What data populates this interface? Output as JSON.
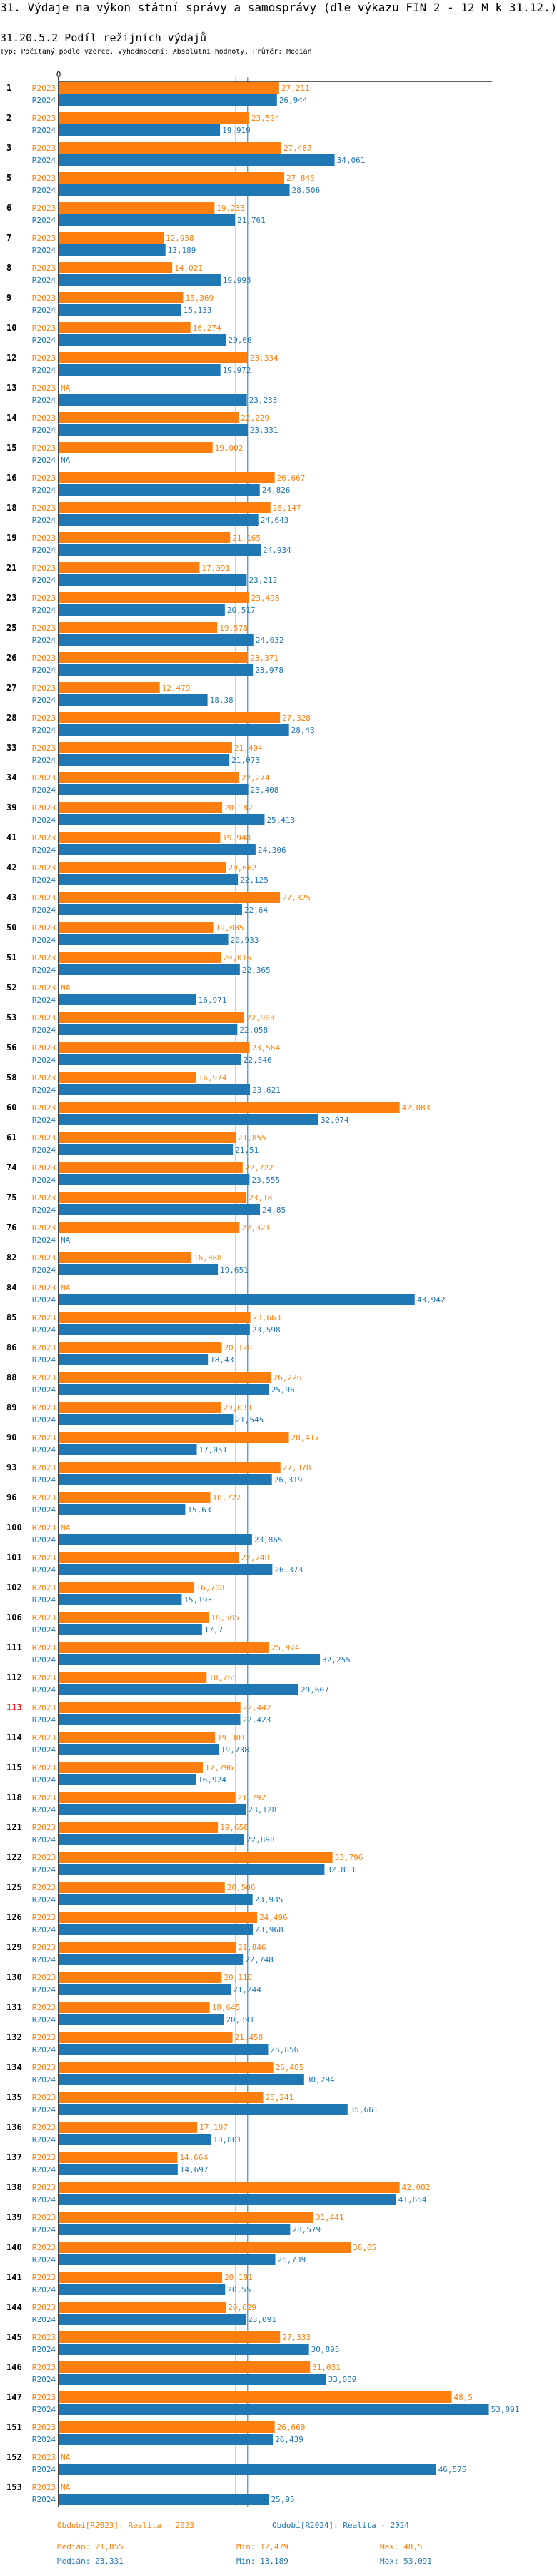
{
  "header": {
    "title": "31. Výdaje na výkon státní správy a samosprávy (dle výkazu FIN 2 - 12 M k 31.12.)",
    "subtitle": "31.20.5.2 Podíl režijních výdajů",
    "description": "Typ: Počítaný podle vzorce, Vyhodnocení: Absolutní hodnoty, Průměr: Medián"
  },
  "chart_data": {
    "type": "bar",
    "orientation": "horizontal",
    "x_tick_labels": [
      "0"
    ],
    "xlim": [
      0,
      53.091
    ],
    "na_label": "NA",
    "highlighted_group": "113",
    "colors": {
      "R2023": "#ff7f0e",
      "R2024": "#1f77b4",
      "highlight": "#ff0000"
    },
    "series": [
      {
        "name": "R2023",
        "legend": "Období[R2023]: Realita - 2023",
        "median": 21.855,
        "median_label": "Medián: 21,855",
        "min_label": "Min: 12,479",
        "max_label": "Max: 48,5"
      },
      {
        "name": "R2024",
        "legend": "Období[R2024]: Realita - 2024",
        "median": 23.331,
        "median_label": "Medián: 23,331",
        "min_label": "Min: 13,189",
        "max_label": "Max: 53,091"
      }
    ],
    "groups": [
      {
        "id": "1",
        "v": [
          27.211,
          26.944
        ]
      },
      {
        "id": "2",
        "v": [
          23.504,
          19.919
        ]
      },
      {
        "id": "3",
        "v": [
          27.487,
          34.061
        ]
      },
      {
        "id": "5",
        "v": [
          27.845,
          28.506
        ]
      },
      {
        "id": "6",
        "v": [
          19.233,
          21.761
        ]
      },
      {
        "id": "7",
        "v": [
          12.958,
          13.189
        ]
      },
      {
        "id": "8",
        "v": [
          14.021,
          19.993
        ]
      },
      {
        "id": "9",
        "v": [
          15.369,
          15.133
        ]
      },
      {
        "id": "10",
        "v": [
          16.274,
          20.66
        ]
      },
      {
        "id": "12",
        "v": [
          23.334,
          19.972
        ]
      },
      {
        "id": "13",
        "v": [
          null,
          23.233
        ]
      },
      {
        "id": "14",
        "v": [
          22.229,
          23.331
        ]
      },
      {
        "id": "15",
        "v": [
          19.002,
          null
        ]
      },
      {
        "id": "16",
        "v": [
          26.667,
          24.826
        ]
      },
      {
        "id": "18",
        "v": [
          26.147,
          24.643
        ]
      },
      {
        "id": "19",
        "v": [
          21.165,
          24.934
        ]
      },
      {
        "id": "21",
        "v": [
          17.391,
          23.212
        ]
      },
      {
        "id": "23",
        "v": [
          23.498,
          20.517
        ]
      },
      {
        "id": "25",
        "v": [
          19.578,
          24.032
        ]
      },
      {
        "id": "26",
        "v": [
          23.371,
          23.978
        ]
      },
      {
        "id": "27",
        "v": [
          12.479,
          18.38
        ]
      },
      {
        "id": "28",
        "v": [
          27.328,
          28.43
        ]
      },
      {
        "id": "33",
        "v": [
          21.404,
          21.073
        ]
      },
      {
        "id": "34",
        "v": [
          22.274,
          23.408
        ]
      },
      {
        "id": "39",
        "v": [
          20.182,
          25.413
        ]
      },
      {
        "id": "41",
        "v": [
          19.948,
          24.306
        ]
      },
      {
        "id": "42",
        "v": [
          20.662,
          22.125
        ]
      },
      {
        "id": "43",
        "v": [
          27.325,
          22.64
        ]
      },
      {
        "id": "50",
        "v": [
          19.085,
          20.933
        ]
      },
      {
        "id": "51",
        "v": [
          20.016,
          22.365
        ]
      },
      {
        "id": "52",
        "v": [
          null,
          16.971
        ]
      },
      {
        "id": "53",
        "v": [
          22.903,
          22.058
        ]
      },
      {
        "id": "56",
        "v": [
          23.564,
          22.546
        ]
      },
      {
        "id": "58",
        "v": [
          16.974,
          23.621
        ]
      },
      {
        "id": "60",
        "v": [
          42.083,
          32.074
        ]
      },
      {
        "id": "61",
        "v": [
          21.855,
          21.51
        ]
      },
      {
        "id": "74",
        "v": [
          22.722,
          23.555
        ]
      },
      {
        "id": "75",
        "v": [
          23.18,
          24.85
        ]
      },
      {
        "id": "76",
        "v": [
          22.321,
          null
        ]
      },
      {
        "id": "82",
        "v": [
          16.388,
          19.651
        ]
      },
      {
        "id": "84",
        "v": [
          null,
          43.942
        ]
      },
      {
        "id": "85",
        "v": [
          23.663,
          23.598
        ]
      },
      {
        "id": "86",
        "v": [
          20.128,
          18.43
        ]
      },
      {
        "id": "88",
        "v": [
          26.226,
          25.96
        ]
      },
      {
        "id": "89",
        "v": [
          20.033,
          21.545
        ]
      },
      {
        "id": "90",
        "v": [
          28.417,
          17.051
        ]
      },
      {
        "id": "93",
        "v": [
          27.378,
          26.319
        ]
      },
      {
        "id": "96",
        "v": [
          18.722,
          15.63
        ]
      },
      {
        "id": "100",
        "v": [
          null,
          23.865
        ]
      },
      {
        "id": "101",
        "v": [
          22.248,
          26.373
        ]
      },
      {
        "id": "102",
        "v": [
          16.708,
          15.193
        ]
      },
      {
        "id": "106",
        "v": [
          18.505,
          17.7
        ]
      },
      {
        "id": "111",
        "v": [
          25.974,
          32.255
        ]
      },
      {
        "id": "112",
        "v": [
          18.265,
          29.607
        ]
      },
      {
        "id": "113",
        "v": [
          22.442,
          22.423
        ]
      },
      {
        "id": "114",
        "v": [
          19.301,
          19.738
        ]
      },
      {
        "id": "115",
        "v": [
          17.796,
          16.924
        ]
      },
      {
        "id": "118",
        "v": [
          21.792,
          23.128
        ]
      },
      {
        "id": "121",
        "v": [
          19.658,
          22.898
        ]
      },
      {
        "id": "122",
        "v": [
          33.796,
          32.813
        ]
      },
      {
        "id": "125",
        "v": [
          20.506,
          23.935
        ]
      },
      {
        "id": "126",
        "v": [
          24.496,
          23.968
        ]
      },
      {
        "id": "129",
        "v": [
          21.846,
          22.748
        ]
      },
      {
        "id": "130",
        "v": [
          20.118,
          21.244
        ]
      },
      {
        "id": "131",
        "v": [
          18.645,
          20.391
        ]
      },
      {
        "id": "132",
        "v": [
          21.458,
          25.856
        ]
      },
      {
        "id": "134",
        "v": [
          26.485,
          30.294
        ]
      },
      {
        "id": "135",
        "v": [
          25.241,
          35.661
        ]
      },
      {
        "id": "136",
        "v": [
          17.107,
          18.801
        ]
      },
      {
        "id": "137",
        "v": [
          14.664,
          14.697
        ]
      },
      {
        "id": "138",
        "v": [
          42.082,
          41.654
        ]
      },
      {
        "id": "139",
        "v": [
          31.441,
          28.579
        ]
      },
      {
        "id": "140",
        "v": [
          36.05,
          26.739
        ]
      },
      {
        "id": "141",
        "v": [
          20.181,
          20.55
        ]
      },
      {
        "id": "144",
        "v": [
          20.629,
          23.091
        ]
      },
      {
        "id": "145",
        "v": [
          27.333,
          30.895
        ]
      },
      {
        "id": "146",
        "v": [
          31.031,
          33.009
        ]
      },
      {
        "id": "147",
        "v": [
          48.5,
          53.091
        ]
      },
      {
        "id": "151",
        "v": [
          26.669,
          26.439
        ]
      },
      {
        "id": "152",
        "v": [
          null,
          46.575
        ]
      },
      {
        "id": "153",
        "v": [
          null,
          25.95
        ]
      }
    ]
  }
}
